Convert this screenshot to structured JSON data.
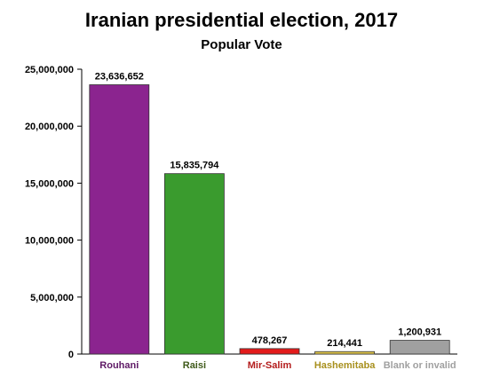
{
  "chart_data": {
    "type": "bar",
    "title": "Iranian presidential election, 2017",
    "subtitle": "Popular Vote",
    "xlabel": "",
    "ylabel": "",
    "categories": [
      "Rouhani",
      "Raisi",
      "Mir-Salim",
      "Hashemitaba",
      "Blank or invalid"
    ],
    "values": [
      23636652,
      15835794,
      478267,
      214441,
      1200931
    ],
    "value_labels": [
      "23,636,652",
      "15,835,794",
      "478,267",
      "214,441",
      "1,200,931"
    ],
    "colors": [
      "#8b248f",
      "#3a9b2e",
      "#e31b1b",
      "#e2c84b",
      "#a0a0a0"
    ],
    "label_colors": [
      "#5f1a66",
      "#3f5a1a",
      "#b31b1b",
      "#a8901e",
      "#a0a0a0"
    ],
    "ylim": [
      0,
      25000000
    ],
    "yticks": [
      0,
      5000000,
      10000000,
      15000000,
      20000000,
      25000000
    ],
    "ytick_labels": [
      "0",
      "5,000,000",
      "10,000,000",
      "15,000,000",
      "20,000,000",
      "25,000,000"
    ],
    "grid": false,
    "legend": "none"
  }
}
